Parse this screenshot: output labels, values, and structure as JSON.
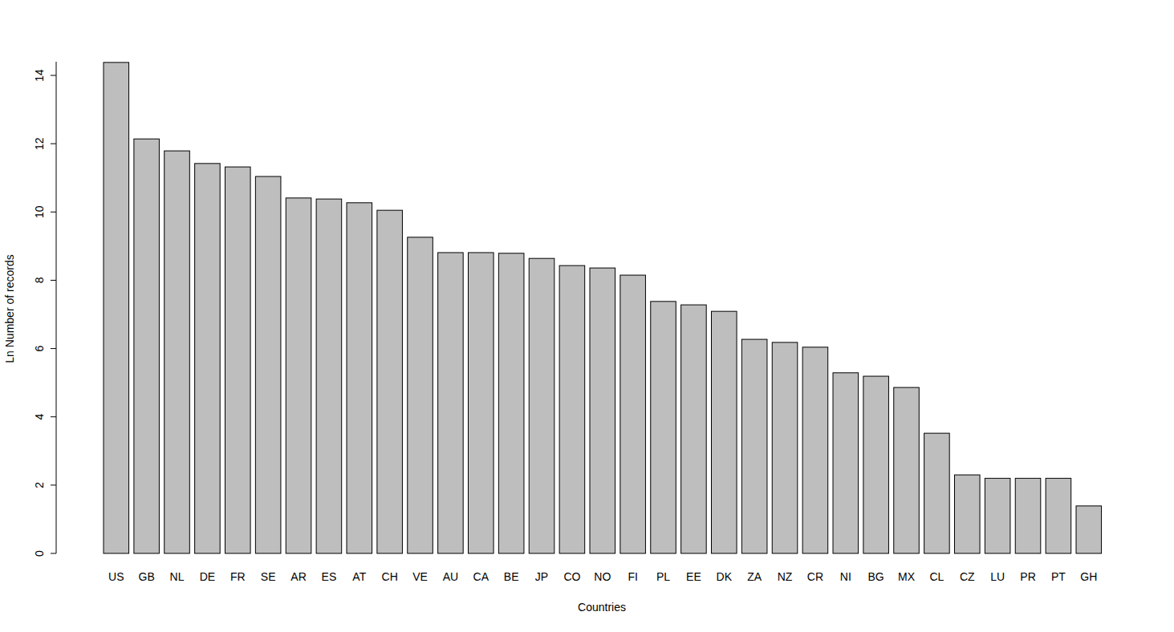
{
  "chart_data": {
    "type": "bar",
    "x_label": "Countries",
    "y_label": "Ln Number of records",
    "categories": [
      "US",
      "GB",
      "NL",
      "DE",
      "FR",
      "SE",
      "AR",
      "ES",
      "AT",
      "CH",
      "VE",
      "AU",
      "CA",
      "BE",
      "JP",
      "CO",
      "NO",
      "FI",
      "PL",
      "EE",
      "DK",
      "ZA",
      "NZ",
      "CR",
      "NI",
      "BG",
      "MX",
      "CL",
      "CZ",
      "LU",
      "PR",
      "PT",
      "GH"
    ],
    "values": [
      14.38,
      12.14,
      11.79,
      11.42,
      11.32,
      11.04,
      10.41,
      10.38,
      10.27,
      10.05,
      9.26,
      8.81,
      8.81,
      8.79,
      8.64,
      8.43,
      8.36,
      8.15,
      7.38,
      7.28,
      7.09,
      6.27,
      6.18,
      6.04,
      5.29,
      5.19,
      4.86,
      3.52,
      2.3,
      2.2,
      2.2,
      2.2,
      1.39
    ],
    "color": "#bebebe",
    "ylim": [
      0,
      14.4
    ],
    "yticks": [
      0,
      2,
      4,
      6,
      8,
      10,
      12,
      14
    ],
    "grid": false
  }
}
